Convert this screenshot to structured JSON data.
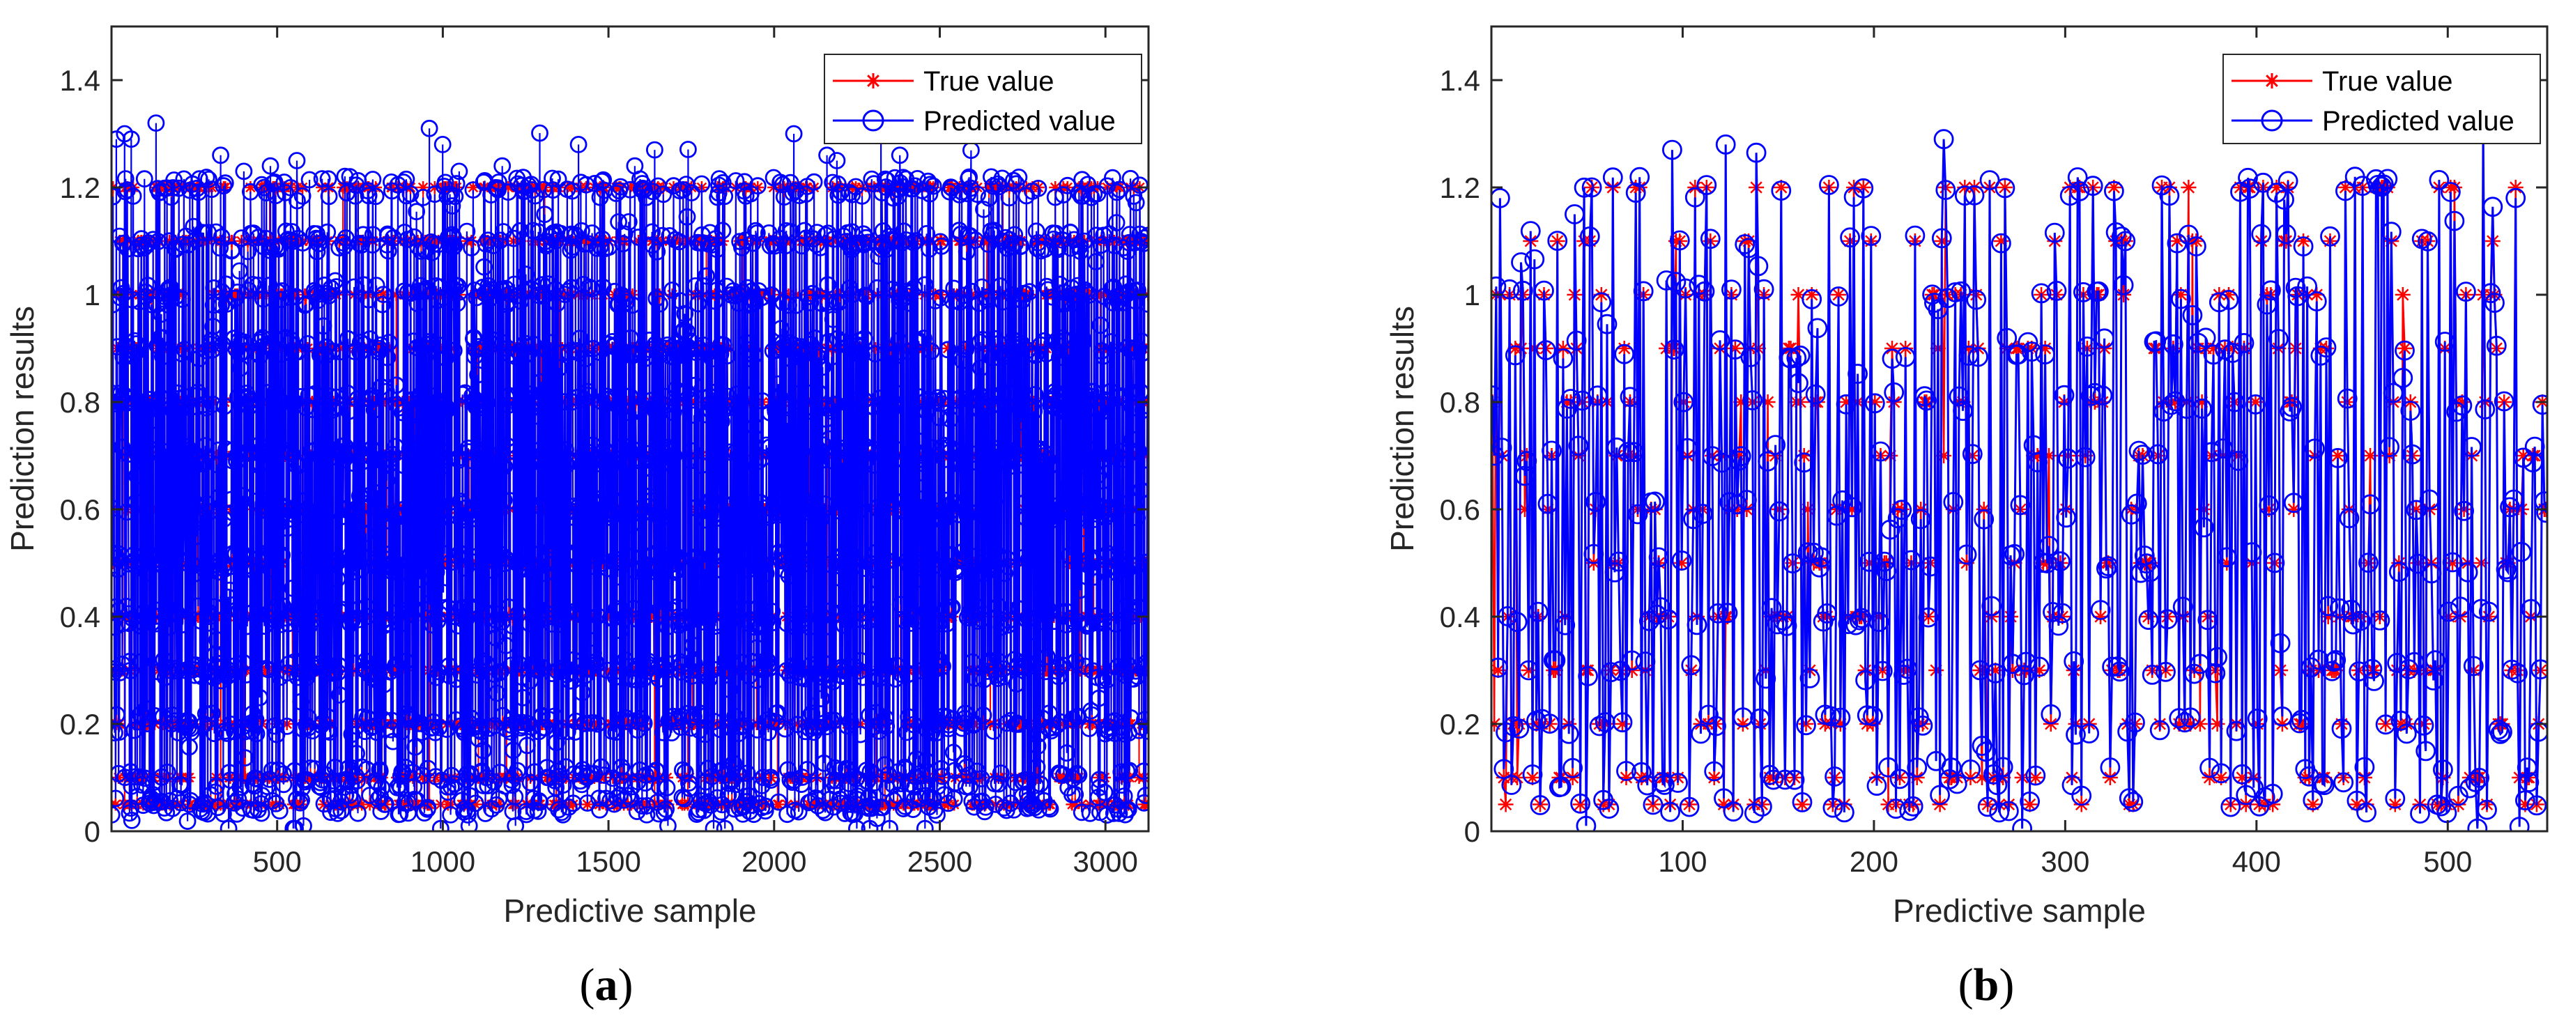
{
  "chart_data": [
    {
      "type": "line",
      "panel_label": "a",
      "title": "",
      "xlabel": "Predictive sample",
      "ylabel": "Prediction results",
      "xlim": [
        0,
        3130
      ],
      "ylim": [
        0,
        1.5
      ],
      "xticks": [
        500,
        1000,
        1500,
        2000,
        2500,
        3000
      ],
      "yticks": [
        0,
        0.2,
        0.4,
        0.6,
        0.8,
        1,
        1.2,
        1.4
      ],
      "ytick_labels": [
        "0",
        "0.2",
        "0.4",
        "0.6",
        "0.8",
        "1",
        "1.2",
        "1.4"
      ],
      "legend_position": "top-right",
      "grid": false,
      "n_points": 3130,
      "value_levels": [
        0.05,
        0.1,
        0.2,
        0.3,
        0.4,
        0.5,
        0.6,
        0.7,
        0.8,
        0.9,
        1.0,
        1.1,
        1.2
      ],
      "series": [
        {
          "name": "True value",
          "color": "#ff0000",
          "marker": "asterisk"
        },
        {
          "name": "Predicted value",
          "color": "#0000ff",
          "marker": "circle"
        }
      ],
      "sample_points": {
        "x": [
          15,
          40,
          60,
          330,
          400,
          480,
          560,
          580,
          720,
          960,
          1000,
          1050,
          1080,
          1180,
          1220,
          1410,
          1580,
          1640,
          1680,
          2060,
          2160,
          2190,
          2380
        ],
        "predicted": [
          1.29,
          1.3,
          1.29,
          1.26,
          1.23,
          1.24,
          1.25,
          0.01,
          1.22,
          1.31,
          1.28,
          1.23,
          0.01,
          1.24,
          0.01,
          1.28,
          1.24,
          1.27,
          0.01,
          1.3,
          1.26,
          1.25,
          1.26
        ]
      }
    },
    {
      "type": "line",
      "panel_label": "b",
      "title": "",
      "xlabel": "Predictive sample",
      "ylabel": "Prediction results",
      "xlim": [
        0,
        552
      ],
      "ylim": [
        0,
        1.5
      ],
      "xticks": [
        100,
        200,
        300,
        400,
        500
      ],
      "yticks": [
        0,
        0.2,
        0.4,
        0.6,
        0.8,
        1,
        1.2,
        1.4
      ],
      "ytick_labels": [
        "0",
        "0.2",
        "0.4",
        "0.6",
        "0.8",
        "1",
        "1.2",
        "1.4"
      ],
      "legend_position": "top-right",
      "grid": false,
      "n_points": 552,
      "value_levels": [
        0.05,
        0.1,
        0.2,
        0.3,
        0.4,
        0.5,
        0.6,
        0.7,
        0.8,
        0.9,
        1.0,
        1.1,
        1.2
      ],
      "series": [
        {
          "name": "True value",
          "color": "#ff0000",
          "marker": "asterisk"
        },
        {
          "name": "Predicted value",
          "color": "#0000ff",
          "marker": "circle"
        }
      ],
      "sample_points": {
        "x": [
          2,
          5,
          10,
          14,
          20,
          50,
          95,
          123,
          237,
          519
        ],
        "predicted": [
          0.7,
          1.18,
          1.01,
          0.39,
          0.3,
          0.01,
          1.27,
          1.28,
          1.29,
          1.31
        ]
      }
    }
  ]
}
